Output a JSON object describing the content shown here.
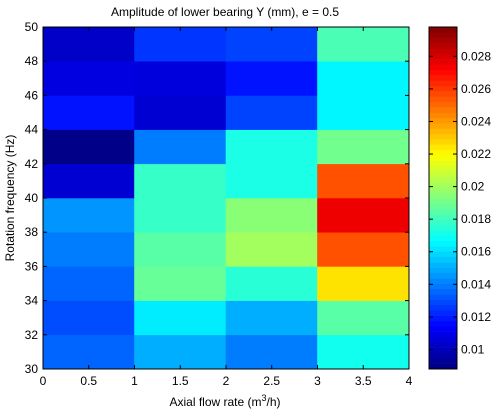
{
  "chart_data": {
    "type": "heatmap",
    "title": "Amplitude of lower bearing Y (mm), e = 0.5",
    "xlabel": "Axial flow rate (m",
    "xlabel_sup": "3",
    "xlabel_tail": "/h)",
    "ylabel": "Rotation frequency (Hz)",
    "xlim": [
      0,
      4
    ],
    "ylim": [
      30,
      50
    ],
    "x_ticks": [
      "0",
      "0.5",
      "1",
      "1.5",
      "2",
      "2.5",
      "3",
      "3.5",
      "4"
    ],
    "y_ticks": [
      "30",
      "32",
      "34",
      "36",
      "38",
      "40",
      "42",
      "44",
      "46",
      "48",
      "50"
    ],
    "x_edges": [
      0,
      1,
      2,
      3,
      4
    ],
    "y_edges": [
      30,
      32,
      34,
      36,
      38,
      40,
      42,
      44,
      46,
      48,
      50
    ],
    "values": [
      [
        0.0135,
        0.015,
        0.014,
        0.017
      ],
      [
        0.013,
        0.0163,
        0.015,
        0.0185
      ],
      [
        0.0135,
        0.0188,
        0.0175,
        0.0225
      ],
      [
        0.014,
        0.0185,
        0.02,
        0.0255
      ],
      [
        0.0145,
        0.0178,
        0.0195,
        0.0275
      ],
      [
        0.0105,
        0.0178,
        0.0172,
        0.0255
      ],
      [
        0.009,
        0.014,
        0.0172,
        0.019
      ],
      [
        0.0118,
        0.0105,
        0.0128,
        0.0165
      ],
      [
        0.0108,
        0.0107,
        0.0118,
        0.0165
      ],
      [
        0.0103,
        0.0125,
        0.0128,
        0.0182
      ]
    ],
    "colorbar": {
      "range": [
        0.0088,
        0.0298
      ],
      "ticks": [
        "0.01",
        "0.012",
        "0.014",
        "0.016",
        "0.018",
        "0.02",
        "0.022",
        "0.024",
        "0.026",
        "0.028"
      ],
      "colormap": "jet"
    }
  }
}
